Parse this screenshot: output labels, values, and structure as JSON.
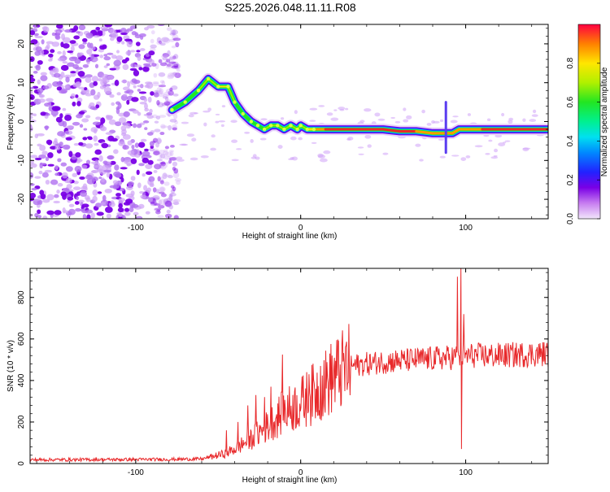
{
  "title": "S225.2026.048.11.11.R08",
  "colors": {
    "axis": "#000000",
    "snr_line": "#e8292b",
    "noise_purple": "#7a00e6",
    "noise_light": "#cfa3f7",
    "ridge_core": "#e8292b"
  },
  "chart_data": [
    {
      "id": "spectrogram",
      "type": "heatmap",
      "xlabel": "Height of straight line (km)",
      "ylabel": "Frequency (Hz)",
      "xlim": [
        -164,
        150
      ],
      "ylim": [
        -25,
        25
      ],
      "x_ticks": [
        -100,
        0,
        100
      ],
      "y_ticks": [
        -20,
        -10,
        0,
        10,
        20
      ],
      "x_tick_labels": [
        "-100",
        "0",
        "100"
      ],
      "y_tick_labels": [
        "-20",
        "-10",
        "0",
        "10",
        "20"
      ],
      "colorbar": {
        "label": "Normalized spectral amplitude",
        "range": [
          0,
          1
        ],
        "ticks": [
          0.0,
          0.2,
          0.4,
          0.6,
          0.8
        ],
        "tick_labels": [
          "0.0",
          "0.2",
          "0.4",
          "0.6",
          "0.8"
        ]
      },
      "noise_region_x": [
        -164,
        -78
      ],
      "ridge": {
        "x": [
          -78,
          -70,
          -62,
          -56,
          -50,
          -44,
          -40,
          -35,
          -30,
          -26,
          -22,
          -18,
          -14,
          -10,
          -6,
          -2,
          0,
          4,
          8,
          15,
          25,
          40,
          50,
          60,
          70,
          80,
          88,
          92,
          96,
          100,
          110,
          120,
          130,
          140,
          150
        ],
        "y": [
          3,
          5,
          8,
          11,
          9,
          9,
          5,
          2,
          0,
          -1,
          -2,
          -1,
          -1,
          -2,
          -1,
          -2,
          -1,
          -2,
          -2,
          -2,
          -2,
          -2,
          -2,
          -2.5,
          -2.5,
          -3,
          -3,
          -3,
          -2,
          -2,
          -2,
          -2,
          -2,
          -2,
          -2
        ],
        "amplitude": [
          0.35,
          0.45,
          0.55,
          0.6,
          0.65,
          0.7,
          0.6,
          0.5,
          0.5,
          0.5,
          0.55,
          0.6,
          0.6,
          0.55,
          0.6,
          0.55,
          0.6,
          0.7,
          0.8,
          0.9,
          0.95,
          0.95,
          0.9,
          0.9,
          0.9,
          0.85,
          0.85,
          0.8,
          0.85,
          0.85,
          0.9,
          0.9,
          0.9,
          0.9,
          0.9
        ]
      }
    },
    {
      "id": "snr",
      "type": "line",
      "xlabel": "Height of straight line (km)",
      "ylabel": "SNR (10 * v/v)",
      "xlim": [
        -164,
        150
      ],
      "ylim": [
        0,
        940
      ],
      "x_ticks": [
        -100,
        0,
        100
      ],
      "y_ticks": [
        0,
        200,
        400,
        600,
        800
      ],
      "x_tick_labels": [
        "-100",
        "0",
        "100"
      ],
      "y_tick_labels": [
        "0",
        "200",
        "400",
        "600",
        "800"
      ],
      "envelope": {
        "x": [
          -164,
          -80,
          -60,
          -50,
          -45,
          -40,
          -30,
          -20,
          -10,
          0,
          10,
          20,
          30,
          50,
          70,
          90,
          100,
          120,
          150
        ],
        "y": [
          18,
          20,
          22,
          40,
          50,
          70,
          120,
          180,
          250,
          290,
          350,
          420,
          470,
          490,
          500,
          510,
          520,
          520,
          530
        ]
      },
      "spikes": [
        {
          "x": -45,
          "y": 160
        },
        {
          "x": -38,
          "y": 200
        },
        {
          "x": -32,
          "y": 280
        },
        {
          "x": -27,
          "y": 330
        },
        {
          "x": -22,
          "y": 320
        },
        {
          "x": -18,
          "y": 370
        },
        {
          "x": -11,
          "y": 525
        },
        {
          "x": -8,
          "y": 330
        },
        {
          "x": 5,
          "y": 430
        },
        {
          "x": 12,
          "y": 470
        },
        {
          "x": 95,
          "y": 900
        },
        {
          "x": 97,
          "y": 940
        },
        {
          "x": 97.5,
          "y": 70
        },
        {
          "x": 99,
          "y": 720
        }
      ]
    }
  ]
}
